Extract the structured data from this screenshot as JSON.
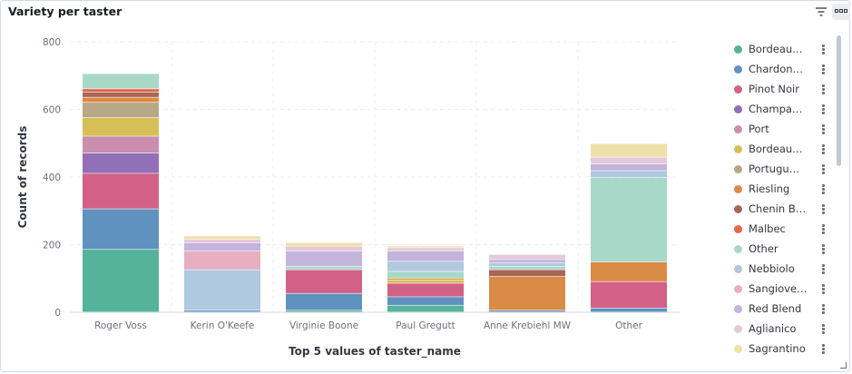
{
  "panel": {
    "title": "Variety per taster"
  },
  "icons": {
    "filter": "filter-icon",
    "options": "options-icon",
    "legend_action": "vertical-dots-icon",
    "resize": "resize-icon"
  },
  "chart_data": {
    "type": "bar",
    "stacked": true,
    "xlabel": "Top 5 values of taster_name",
    "ylabel": "Count of records",
    "ylim": [
      0,
      800
    ],
    "yticks": [
      0,
      200,
      400,
      600,
      800
    ],
    "grid": true,
    "legend_position": "right",
    "categories": [
      "Roger Voss",
      "Kerin O'Keefe",
      "Virginie Boone",
      "Paul Gregutt",
      "Anne Krebiehl MW",
      "Other"
    ],
    "series": [
      {
        "name": "Bordeau…",
        "color": "#54b399",
        "values": [
          185,
          0,
          5,
          20,
          0,
          0
        ]
      },
      {
        "name": "Chardon…",
        "color": "#6092c0",
        "values": [
          120,
          5,
          50,
          25,
          5,
          12
        ]
      },
      {
        "name": "Pinot Noir",
        "color": "#d36086",
        "values": [
          105,
          0,
          70,
          40,
          0,
          78
        ]
      },
      {
        "name": "Champa…",
        "color": "#9170b8",
        "values": [
          60,
          0,
          0,
          0,
          0,
          0
        ]
      },
      {
        "name": "Port",
        "color": "#ca8eae",
        "values": [
          50,
          0,
          0,
          0,
          0,
          0
        ]
      },
      {
        "name": "Bordeau…",
        "color": "#d6bf57",
        "values": [
          55,
          0,
          0,
          10,
          0,
          0
        ]
      },
      {
        "name": "Portugu…",
        "color": "#b9a888",
        "values": [
          45,
          0,
          0,
          0,
          0,
          0
        ]
      },
      {
        "name": "Riesling",
        "color": "#da8b45",
        "values": [
          15,
          0,
          0,
          5,
          100,
          58
        ]
      },
      {
        "name": "Chenin B…",
        "color": "#aa6556",
        "values": [
          15,
          0,
          0,
          0,
          20,
          0
        ]
      },
      {
        "name": "Malbec",
        "color": "#e7664c",
        "values": [
          10,
          0,
          0,
          0,
          0,
          0
        ]
      },
      {
        "name": "Other",
        "color": "#a8d8c8",
        "values": [
          45,
          0,
          10,
          20,
          10,
          250
        ]
      },
      {
        "name": "Nebbiolo",
        "color": "#b0c8e0",
        "values": [
          0,
          120,
          0,
          30,
          10,
          20
        ]
      },
      {
        "name": "Sangiove…",
        "color": "#e8aec1",
        "values": [
          0,
          55,
          0,
          0,
          0,
          0
        ]
      },
      {
        "name": "Red Blend",
        "color": "#c3b4dc",
        "values": [
          0,
          25,
          45,
          30,
          10,
          20
        ]
      },
      {
        "name": "Aglianico",
        "color": "#e6c8da",
        "values": [
          0,
          10,
          15,
          10,
          15,
          20
        ]
      },
      {
        "name": "Sagrantino",
        "color": "#ede0a9",
        "values": [
          0,
          10,
          10,
          5,
          0,
          40
        ]
      }
    ]
  }
}
